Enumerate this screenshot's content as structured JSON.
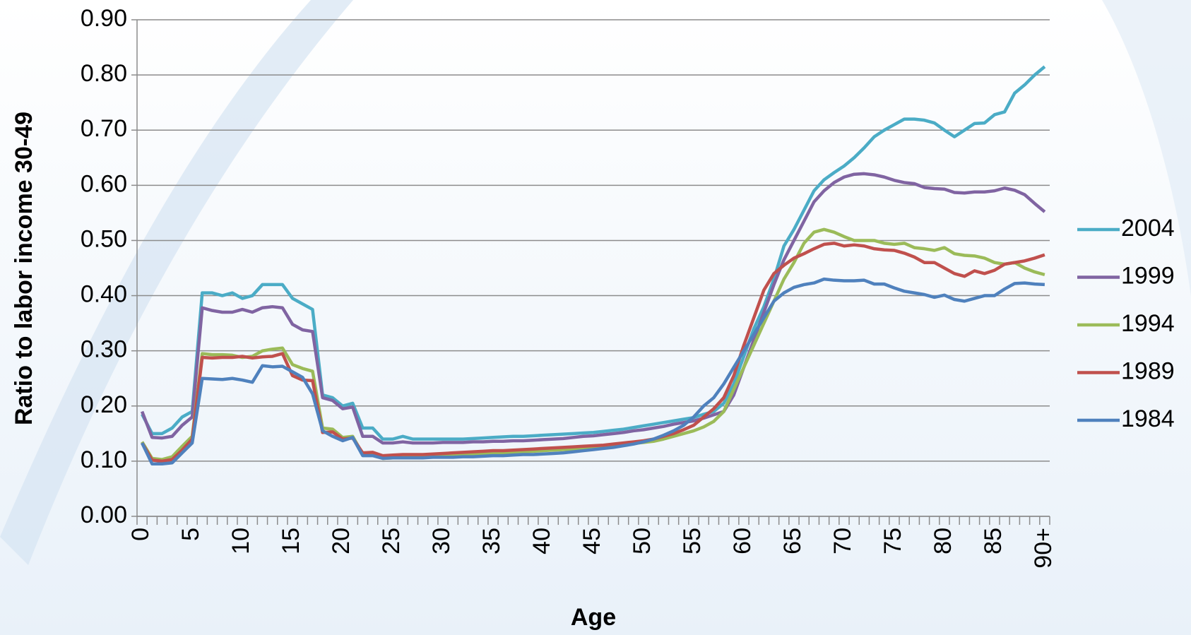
{
  "chart_data": {
    "type": "line",
    "y_label": "Ratio to labor income 30-49",
    "x_label": "Age",
    "categories": [
      "0",
      null,
      null,
      null,
      null,
      "5",
      null,
      null,
      null,
      null,
      "10",
      null,
      null,
      null,
      null,
      "15",
      null,
      null,
      null,
      null,
      "20",
      null,
      null,
      null,
      null,
      "25",
      null,
      null,
      null,
      null,
      "30",
      null,
      null,
      null,
      null,
      "35",
      null,
      null,
      null,
      null,
      "40",
      null,
      null,
      null,
      null,
      "45",
      null,
      null,
      null,
      null,
      "50",
      null,
      null,
      null,
      null,
      "55",
      null,
      null,
      null,
      null,
      "60",
      null,
      null,
      null,
      null,
      "65",
      null,
      null,
      null,
      null,
      "70",
      null,
      null,
      null,
      null,
      "75",
      null,
      null,
      null,
      null,
      "80",
      null,
      null,
      null,
      null,
      "85",
      null,
      null,
      null,
      null,
      "90+"
    ],
    "ylim": [
      0,
      0.9
    ],
    "yticks": [
      {
        "value": 0,
        "label": "0.00"
      },
      {
        "value": 0.1,
        "label": "0.10"
      },
      {
        "value": 0.2,
        "label": "0.20"
      },
      {
        "value": 0.3,
        "label": "0.30"
      },
      {
        "value": 0.4,
        "label": "0.40"
      },
      {
        "value": 0.5,
        "label": "0.50"
      },
      {
        "value": 0.6,
        "label": "0.60"
      },
      {
        "value": 0.7,
        "label": "0.70"
      },
      {
        "value": 0.8,
        "label": "0.80"
      },
      {
        "value": 0.9,
        "label": "0.90"
      }
    ],
    "grid": true,
    "legend": "right",
    "series": [
      {
        "name": "2004",
        "color": "#4bacc6",
        "values": [
          0.185,
          0.15,
          0.15,
          0.16,
          0.18,
          0.19,
          0.405,
          0.405,
          0.4,
          0.405,
          0.395,
          0.4,
          0.42,
          0.42,
          0.42,
          0.395,
          0.385,
          0.375,
          0.22,
          0.215,
          0.2,
          0.205,
          0.16,
          0.16,
          0.14,
          0.14,
          0.145,
          0.14,
          0.14,
          0.14,
          0.14,
          0.14,
          0.14,
          0.141,
          0.142,
          0.143,
          0.144,
          0.145,
          0.145,
          0.146,
          0.147,
          0.148,
          0.149,
          0.15,
          0.151,
          0.152,
          0.154,
          0.156,
          0.158,
          0.161,
          0.164,
          0.167,
          0.17,
          0.173,
          0.176,
          0.179,
          0.185,
          0.19,
          0.205,
          0.24,
          0.29,
          0.34,
          0.38,
          0.43,
          0.49,
          0.52,
          0.555,
          0.59,
          0.61,
          0.623,
          0.635,
          0.65,
          0.668,
          0.688,
          0.7,
          0.71,
          0.72,
          0.72,
          0.718,
          0.713,
          0.7,
          0.688,
          0.7,
          0.712,
          0.713,
          0.728,
          0.733,
          0.767,
          0.782,
          0.8,
          0.815
        ]
      },
      {
        "name": "1999",
        "color": "#8064a2",
        "values": [
          0.19,
          0.143,
          0.142,
          0.145,
          0.165,
          0.18,
          0.378,
          0.373,
          0.37,
          0.37,
          0.375,
          0.37,
          0.378,
          0.38,
          0.378,
          0.348,
          0.338,
          0.335,
          0.215,
          0.21,
          0.195,
          0.198,
          0.145,
          0.145,
          0.133,
          0.133,
          0.135,
          0.133,
          0.133,
          0.133,
          0.134,
          0.134,
          0.134,
          0.135,
          0.135,
          0.136,
          0.136,
          0.137,
          0.137,
          0.138,
          0.139,
          0.14,
          0.141,
          0.143,
          0.145,
          0.146,
          0.148,
          0.15,
          0.152,
          0.155,
          0.157,
          0.16,
          0.163,
          0.167,
          0.17,
          0.173,
          0.178,
          0.184,
          0.19,
          0.22,
          0.27,
          0.32,
          0.37,
          0.42,
          0.465,
          0.5,
          0.535,
          0.57,
          0.59,
          0.605,
          0.615,
          0.62,
          0.621,
          0.619,
          0.615,
          0.609,
          0.605,
          0.603,
          0.596,
          0.594,
          0.593,
          0.587,
          0.586,
          0.588,
          0.588,
          0.59,
          0.595,
          0.591,
          0.583,
          0.567,
          0.552
        ]
      },
      {
        "name": "1994",
        "color": "#9bbb59",
        "values": [
          0.135,
          0.105,
          0.103,
          0.108,
          0.127,
          0.145,
          0.295,
          0.293,
          0.293,
          0.292,
          0.288,
          0.29,
          0.3,
          0.303,
          0.305,
          0.275,
          0.268,
          0.263,
          0.16,
          0.158,
          0.143,
          0.145,
          0.113,
          0.113,
          0.105,
          0.106,
          0.107,
          0.107,
          0.108,
          0.108,
          0.109,
          0.11,
          0.111,
          0.112,
          0.113,
          0.114,
          0.115,
          0.116,
          0.117,
          0.118,
          0.119,
          0.12,
          0.121,
          0.122,
          0.123,
          0.124,
          0.126,
          0.128,
          0.13,
          0.132,
          0.134,
          0.136,
          0.14,
          0.145,
          0.15,
          0.155,
          0.162,
          0.172,
          0.19,
          0.23,
          0.27,
          0.31,
          0.35,
          0.39,
          0.43,
          0.46,
          0.495,
          0.515,
          0.52,
          0.515,
          0.507,
          0.5,
          0.5,
          0.5,
          0.495,
          0.493,
          0.495,
          0.487,
          0.485,
          0.482,
          0.487,
          0.476,
          0.473,
          0.472,
          0.468,
          0.46,
          0.457,
          0.46,
          0.45,
          0.443,
          0.438
        ]
      },
      {
        "name": "1989",
        "color": "#c0504d",
        "values": [
          0.133,
          0.102,
          0.1,
          0.103,
          0.12,
          0.14,
          0.288,
          0.287,
          0.288,
          0.288,
          0.29,
          0.287,
          0.289,
          0.29,
          0.295,
          0.255,
          0.247,
          0.246,
          0.152,
          0.153,
          0.14,
          0.142,
          0.115,
          0.116,
          0.11,
          0.111,
          0.112,
          0.112,
          0.112,
          0.113,
          0.114,
          0.115,
          0.116,
          0.117,
          0.118,
          0.119,
          0.119,
          0.12,
          0.121,
          0.122,
          0.123,
          0.124,
          0.125,
          0.126,
          0.127,
          0.128,
          0.129,
          0.131,
          0.133,
          0.135,
          0.137,
          0.14,
          0.145,
          0.15,
          0.157,
          0.165,
          0.18,
          0.195,
          0.215,
          0.255,
          0.31,
          0.36,
          0.41,
          0.44,
          0.455,
          0.468,
          0.476,
          0.485,
          0.493,
          0.495,
          0.49,
          0.492,
          0.49,
          0.485,
          0.483,
          0.482,
          0.477,
          0.47,
          0.46,
          0.46,
          0.45,
          0.44,
          0.435,
          0.445,
          0.44,
          0.446,
          0.457,
          0.46,
          0.463,
          0.468,
          0.474
        ]
      },
      {
        "name": "1984",
        "color": "#4f81bd",
        "values": [
          0.133,
          0.095,
          0.095,
          0.097,
          0.115,
          0.133,
          0.25,
          0.249,
          0.248,
          0.25,
          0.247,
          0.243,
          0.273,
          0.271,
          0.272,
          0.262,
          0.252,
          0.222,
          0.155,
          0.145,
          0.137,
          0.143,
          0.11,
          0.11,
          0.105,
          0.106,
          0.106,
          0.106,
          0.106,
          0.107,
          0.107,
          0.107,
          0.108,
          0.108,
          0.109,
          0.11,
          0.11,
          0.111,
          0.112,
          0.112,
          0.113,
          0.114,
          0.115,
          0.117,
          0.119,
          0.121,
          0.123,
          0.125,
          0.128,
          0.131,
          0.135,
          0.14,
          0.147,
          0.155,
          0.165,
          0.18,
          0.2,
          0.215,
          0.24,
          0.27,
          0.3,
          0.33,
          0.36,
          0.39,
          0.405,
          0.415,
          0.42,
          0.423,
          0.43,
          0.428,
          0.427,
          0.427,
          0.428,
          0.421,
          0.421,
          0.414,
          0.408,
          0.405,
          0.402,
          0.397,
          0.401,
          0.393,
          0.39,
          0.395,
          0.4,
          0.4,
          0.412,
          0.422,
          0.423,
          0.421,
          0.42
        ]
      }
    ]
  }
}
